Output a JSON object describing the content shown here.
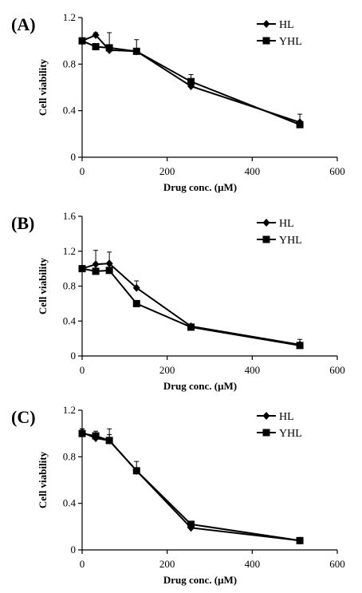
{
  "chart_data": [
    {
      "type": "line",
      "panel_label": "(A)",
      "xlabel": "Drug conc. (μM)",
      "ylabel": "Cell viability",
      "xlim": [
        0,
        600
      ],
      "ylim": [
        0,
        1.2
      ],
      "xticks": [
        0,
        200,
        400,
        600
      ],
      "yticks": [
        0,
        0.4,
        0.8,
        1.2
      ],
      "x": [
        0,
        32,
        64,
        128,
        256,
        512
      ],
      "legend_position": "top-right",
      "grid": false,
      "series": [
        {
          "name": "HL",
          "marker": "diamond",
          "values": [
            1.0,
            1.05,
            0.92,
            0.91,
            0.61,
            0.3
          ],
          "errors": [
            0.02,
            0.02,
            0.02,
            0.02,
            0.03,
            0.07
          ]
        },
        {
          "name": "YHL",
          "marker": "square",
          "values": [
            1.0,
            0.95,
            0.94,
            0.91,
            0.65,
            0.28
          ],
          "errors": [
            0.02,
            0.02,
            0.13,
            0.1,
            0.06,
            0.03
          ]
        }
      ]
    },
    {
      "type": "line",
      "panel_label": "(B)",
      "xlabel": "Drug conc. (μM)",
      "ylabel": "Cell viability",
      "xlim": [
        0,
        600
      ],
      "ylim": [
        0,
        1.6
      ],
      "xticks": [
        0,
        200,
        400,
        600
      ],
      "yticks": [
        0,
        0.4,
        0.8,
        1.2,
        1.6
      ],
      "x": [
        0,
        32,
        64,
        128,
        256,
        512
      ],
      "legend_position": "top-right",
      "grid": false,
      "series": [
        {
          "name": "HL",
          "marker": "diamond",
          "values": [
            1.0,
            1.05,
            1.06,
            0.78,
            0.34,
            0.13
          ],
          "errors": [
            0.02,
            0.16,
            0.13,
            0.08,
            0.02,
            0.06
          ]
        },
        {
          "name": "YHL",
          "marker": "square",
          "values": [
            1.0,
            0.97,
            0.98,
            0.6,
            0.33,
            0.12
          ],
          "errors": [
            0.02,
            0.02,
            0.02,
            0.02,
            0.02,
            0.03
          ]
        }
      ]
    },
    {
      "type": "line",
      "panel_label": "(C)",
      "xlabel": "Drug conc. (μM)",
      "ylabel": "Cell viability",
      "xlim": [
        0,
        600
      ],
      "ylim": [
        0,
        1.2
      ],
      "xticks": [
        0,
        200,
        400,
        600
      ],
      "yticks": [
        0,
        0.4,
        0.8,
        1.2
      ],
      "x": [
        0,
        32,
        64,
        128,
        256,
        512
      ],
      "legend_position": "top-right",
      "grid": false,
      "series": [
        {
          "name": "HL",
          "marker": "diamond",
          "values": [
            1.01,
            0.96,
            0.94,
            0.68,
            0.19,
            0.08
          ],
          "errors": [
            0.03,
            0.03,
            0.05,
            0.02,
            0.02,
            0.01
          ]
        },
        {
          "name": "YHL",
          "marker": "square",
          "values": [
            1.0,
            0.98,
            0.94,
            0.68,
            0.22,
            0.08
          ],
          "errors": [
            0.04,
            0.04,
            0.1,
            0.08,
            0.02,
            0.01
          ]
        }
      ]
    }
  ]
}
